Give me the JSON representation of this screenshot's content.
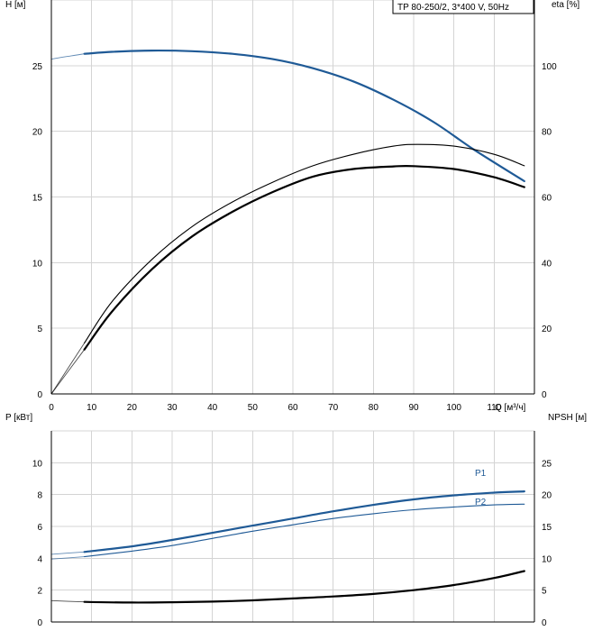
{
  "chart_data": [
    {
      "type": "line",
      "title": "TP 80-250/2, 3*400 V, 50Hz",
      "xlabel": "Q [м³/ч]",
      "ylabel": "H [м]",
      "y2label": "eta [%]",
      "xlim": [
        0,
        120
      ],
      "ylim": [
        0,
        30
      ],
      "y2lim": [
        0,
        120
      ],
      "x_ticks": [
        0,
        10,
        20,
        30,
        40,
        50,
        60,
        70,
        80,
        90,
        100,
        110
      ],
      "y_ticks": [
        0,
        5,
        10,
        15,
        20,
        25
      ],
      "y2_ticks": [
        0,
        20,
        40,
        60,
        80,
        100
      ],
      "grid": true,
      "series": [
        {
          "axis": "left",
          "color": "#1f5a96",
          "x": [
            0,
            5,
            8.2,
            15,
            25,
            35,
            45,
            55,
            65,
            75,
            85,
            95,
            105,
            117.5
          ],
          "y": [
            25.5,
            25.75,
            25.9,
            26.05,
            26.15,
            26.1,
            25.9,
            25.5,
            24.8,
            23.8,
            22.4,
            20.7,
            18.6,
            16.2
          ]
        },
        {
          "axis": "right",
          "color": "#000000",
          "x": [
            0,
            8.2,
            15,
            25,
            35,
            45,
            55,
            65,
            75,
            85,
            91,
            100,
            110,
            117.5
          ],
          "y": [
            0,
            15.5,
            28,
            41,
            51,
            58.5,
            64.5,
            69.5,
            73,
            75.5,
            76,
            75.5,
            73,
            69.5
          ]
        },
        {
          "axis": "right",
          "color": "#000000",
          "x": [
            0,
            8.2,
            15,
            25,
            35,
            45,
            55,
            65,
            75,
            85,
            90,
            100,
            110,
            117.5
          ],
          "y": [
            0,
            13.5,
            25,
            38,
            48,
            55.5,
            61.5,
            66.2,
            68.5,
            69.3,
            69.4,
            68.5,
            66,
            63
          ]
        }
      ]
    },
    {
      "type": "line",
      "ylabel": "P [кВт]",
      "y2label": "NPSH [м]",
      "xlim": [
        0,
        120
      ],
      "ylim": [
        0,
        12
      ],
      "y2lim": [
        0,
        30
      ],
      "y_ticks": [
        0,
        2,
        4,
        6,
        8,
        10
      ],
      "y2_ticks": [
        0,
        5,
        10,
        15,
        20,
        25
      ],
      "grid": true,
      "series": [
        {
          "name": "P1",
          "axis": "left",
          "color": "#1f5a96",
          "x": [
            0,
            8.2,
            20,
            30,
            40,
            50,
            60,
            70,
            80,
            90,
            100,
            110,
            117.5
          ],
          "y": [
            4.25,
            4.4,
            4.75,
            5.15,
            5.6,
            6.05,
            6.5,
            6.95,
            7.35,
            7.7,
            7.95,
            8.12,
            8.2
          ]
        },
        {
          "name": "P2",
          "axis": "left",
          "color": "#1f5a96",
          "x": [
            0,
            8.2,
            20,
            30,
            40,
            50,
            60,
            70,
            80,
            90,
            100,
            110,
            117.5
          ],
          "y": [
            3.95,
            4.1,
            4.45,
            4.8,
            5.25,
            5.7,
            6.1,
            6.5,
            6.8,
            7.05,
            7.22,
            7.35,
            7.4
          ]
        },
        {
          "axis": "right",
          "color": "#000000",
          "x": [
            0,
            8.2,
            20,
            30,
            40,
            50,
            60,
            70,
            80,
            90,
            100,
            110,
            117.5
          ],
          "y": [
            3.35,
            3.15,
            3.05,
            3.1,
            3.2,
            3.4,
            3.7,
            4.0,
            4.4,
            5.0,
            5.8,
            6.9,
            8.0
          ]
        }
      ]
    }
  ]
}
